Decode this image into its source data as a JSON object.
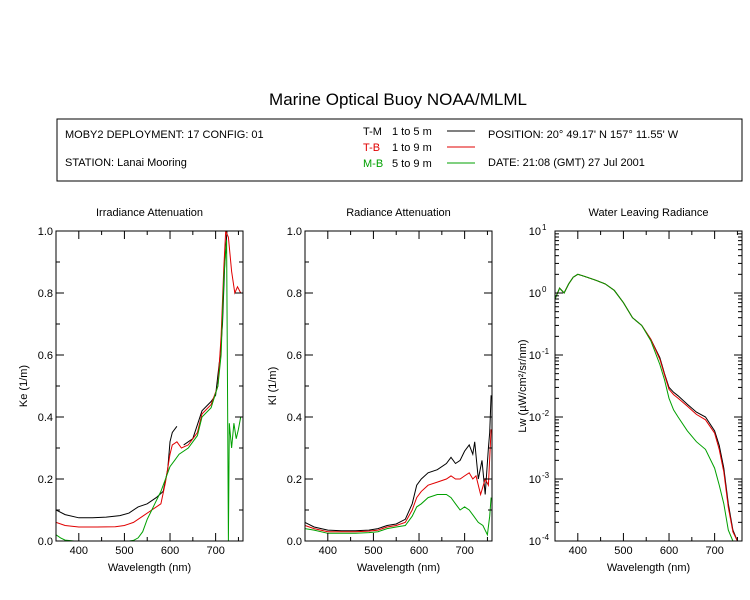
{
  "title": "Marine Optical Buoy NOAA/MLML",
  "info": {
    "deployment": "MOBY2 DEPLOYMENT: 17 CONFIG: 01",
    "station": "STATION: Lanai Mooring",
    "position": "POSITION: 20° 49.17' N   157° 11.55' W",
    "date": "DATE: 21:08 (GMT) 27 Jul 2001",
    "legend": [
      {
        "label": "T-M",
        "range": "1 to 5  m",
        "color": "#000000"
      },
      {
        "label": "T-B",
        "range": "1 to 9  m",
        "color": "#e00000"
      },
      {
        "label": "M-B",
        "range": "5 to 9  m",
        "color": "#00a000"
      }
    ]
  },
  "chart_data": [
    {
      "type": "line",
      "title": "Irradiance Attenuation",
      "xlabel": "Wavelength (nm)",
      "ylabel": "Ke  (1/m)",
      "xlim": [
        350,
        760
      ],
      "ylim": [
        0,
        1
      ],
      "yscale": "linear",
      "xticks": [
        400,
        500,
        600,
        700
      ],
      "yticks": [
        {
          "value": 0,
          "label": "0.0"
        },
        {
          "value": 0.2,
          "label": "0.2"
        },
        {
          "value": 0.4,
          "label": "0.4"
        },
        {
          "value": 0.6,
          "label": "0.6"
        },
        {
          "value": 0.8,
          "label": "0.8"
        },
        {
          "value": 1,
          "label": "1.0"
        }
      ],
      "series": [
        {
          "name": "T-M",
          "color": "#000000",
          "x": [
            350,
            370,
            400,
            430,
            460,
            490,
            510,
            530,
            550,
            570,
            585,
            595,
            600,
            605,
            615
          ],
          "y": [
            0.1,
            0.085,
            0.075,
            0.075,
            0.077,
            0.082,
            0.09,
            0.11,
            0.12,
            0.14,
            0.16,
            0.23,
            0.32,
            0.35,
            0.37
          ]
        },
        {
          "name": "T-M",
          "color": "#000000",
          "x": [
            630,
            650,
            670,
            690,
            700,
            710,
            715,
            720,
            725
          ],
          "y": [
            0.31,
            0.33,
            0.42,
            0.45,
            0.47,
            0.6,
            0.7,
            0.9,
            1.0
          ]
        },
        {
          "name": "T-B",
          "color": "#e00000",
          "x": [
            350,
            370,
            400,
            440,
            480,
            500,
            520,
            540,
            560,
            580,
            590,
            600,
            605,
            615,
            625,
            640,
            660,
            670,
            690,
            705,
            712,
            718,
            722,
            728,
            735,
            742,
            748,
            755
          ],
          "y": [
            0.06,
            0.05,
            0.045,
            0.045,
            0.046,
            0.05,
            0.06,
            0.08,
            0.1,
            0.12,
            0.19,
            0.28,
            0.31,
            0.32,
            0.3,
            0.31,
            0.35,
            0.41,
            0.44,
            0.5,
            0.66,
            0.88,
            1.0,
            0.98,
            0.87,
            0.8,
            0.82,
            0.8
          ]
        },
        {
          "name": "M-B",
          "color": "#00a000",
          "x": [
            350,
            360,
            370,
            390,
            410,
            430,
            460,
            490,
            510,
            520,
            530,
            540,
            550,
            560,
            570,
            580,
            590,
            600,
            610,
            620,
            640,
            660,
            670,
            690,
            705,
            712,
            718,
            724,
            726,
            728,
            730,
            735,
            740,
            745,
            750,
            755
          ],
          "y": [
            0.02,
            0.01,
            0.003,
            0.0,
            0.0,
            0.0,
            0.0,
            0.0,
            0.0,
            0.002,
            0.01,
            0.03,
            0.07,
            0.1,
            0.13,
            0.16,
            0.2,
            0.24,
            0.26,
            0.28,
            0.3,
            0.34,
            0.4,
            0.43,
            0.5,
            0.6,
            0.85,
            0.97,
            0.5,
            0.0,
            0.38,
            0.3,
            0.38,
            0.33,
            0.36,
            0.4
          ]
        }
      ]
    },
    {
      "type": "line",
      "title": "Radiance Attenuation",
      "xlabel": "Wavelength (nm)",
      "ylabel": "Kl  (1/m)",
      "xlim": [
        350,
        760
      ],
      "ylim": [
        0,
        1
      ],
      "yscale": "linear",
      "xticks": [
        400,
        500,
        600,
        700
      ],
      "yticks": [
        {
          "value": 0,
          "label": "0.0"
        },
        {
          "value": 0.2,
          "label": "0.2"
        },
        {
          "value": 0.4,
          "label": "0.4"
        },
        {
          "value": 0.6,
          "label": "0.6"
        },
        {
          "value": 0.8,
          "label": "0.8"
        },
        {
          "value": 1,
          "label": "1.0"
        }
      ],
      "series": [
        {
          "name": "T-M",
          "color": "#000000",
          "x": [
            350,
            370,
            400,
            430,
            460,
            490,
            510,
            530,
            550,
            570,
            585,
            595,
            605,
            620,
            640,
            660,
            670,
            680,
            690,
            700,
            710,
            718,
            722,
            730,
            738,
            745,
            752,
            755,
            758
          ],
          "y": [
            0.06,
            0.045,
            0.035,
            0.033,
            0.033,
            0.035,
            0.04,
            0.05,
            0.055,
            0.07,
            0.12,
            0.18,
            0.2,
            0.22,
            0.23,
            0.25,
            0.27,
            0.25,
            0.26,
            0.29,
            0.31,
            0.28,
            0.32,
            0.2,
            0.26,
            0.15,
            0.3,
            0.35,
            0.47
          ]
        },
        {
          "name": "T-B",
          "color": "#e00000",
          "x": [
            350,
            370,
            400,
            430,
            460,
            490,
            510,
            530,
            550,
            570,
            585,
            595,
            605,
            620,
            640,
            660,
            670,
            680,
            690,
            700,
            710,
            718,
            725,
            735,
            745,
            752,
            758
          ],
          "y": [
            0.05,
            0.04,
            0.03,
            0.03,
            0.03,
            0.032,
            0.035,
            0.045,
            0.05,
            0.06,
            0.1,
            0.14,
            0.16,
            0.18,
            0.19,
            0.2,
            0.21,
            0.2,
            0.2,
            0.21,
            0.22,
            0.2,
            0.21,
            0.15,
            0.2,
            0.18,
            0.36
          ]
        },
        {
          "name": "M-B",
          "color": "#00a000",
          "x": [
            350,
            370,
            400,
            430,
            460,
            490,
            510,
            530,
            550,
            570,
            585,
            595,
            605,
            620,
            640,
            660,
            670,
            680,
            690,
            700,
            710,
            720,
            730,
            740,
            750,
            755,
            758
          ],
          "y": [
            0.04,
            0.035,
            0.025,
            0.025,
            0.025,
            0.027,
            0.03,
            0.04,
            0.045,
            0.05,
            0.08,
            0.11,
            0.12,
            0.14,
            0.15,
            0.15,
            0.14,
            0.12,
            0.1,
            0.11,
            0.1,
            0.08,
            0.06,
            0.05,
            0.02,
            0.08,
            0.14
          ]
        }
      ]
    },
    {
      "type": "line",
      "title": "Water Leaving Radiance",
      "xlabel": "Wavelength (nm)",
      "ylabel": "Lw  (µW/cm²/sr/nm)",
      "xlim": [
        350,
        760
      ],
      "ylim": [
        0.0001,
        10
      ],
      "yscale": "log",
      "xticks": [
        400,
        500,
        600,
        700
      ],
      "yticks": [
        {
          "value": 10,
          "base": "10",
          "exp": "1"
        },
        {
          "value": 1,
          "base": "10",
          "exp": "0"
        },
        {
          "value": 0.1,
          "base": "10",
          "exp": "-1"
        },
        {
          "value": 0.01,
          "base": "10",
          "exp": "-2"
        },
        {
          "value": 0.001,
          "base": "10",
          "exp": "-3"
        },
        {
          "value": 0.0001,
          "base": "10",
          "exp": "-4"
        }
      ],
      "series": [
        {
          "name": "T-M",
          "color": "#000000",
          "x": [
            350,
            360,
            370,
            380,
            390,
            400,
            410,
            420,
            440,
            460,
            480,
            500,
            520,
            540,
            560,
            580,
            590,
            600,
            610,
            620,
            640,
            660,
            680,
            700,
            710,
            720,
            730,
            740,
            750
          ],
          "y": [
            0.8,
            1.2,
            1.0,
            1.4,
            1.8,
            2.0,
            1.9,
            1.8,
            1.6,
            1.4,
            1.1,
            0.7,
            0.4,
            0.3,
            0.18,
            0.09,
            0.05,
            0.03,
            0.025,
            0.022,
            0.016,
            0.012,
            0.01,
            0.006,
            0.0035,
            0.0015,
            0.0004,
            0.00015,
            0.0001
          ]
        },
        {
          "name": "T-B",
          "color": "#e00000",
          "x": [
            350,
            360,
            370,
            380,
            390,
            400,
            410,
            420,
            440,
            460,
            480,
            500,
            520,
            540,
            560,
            580,
            590,
            600,
            610,
            620,
            640,
            660,
            680,
            700,
            710,
            720,
            730,
            740,
            750
          ],
          "y": [
            0.8,
            1.2,
            1.0,
            1.4,
            1.8,
            2.0,
            1.9,
            1.8,
            1.6,
            1.4,
            1.1,
            0.7,
            0.4,
            0.3,
            0.18,
            0.085,
            0.048,
            0.028,
            0.023,
            0.02,
            0.015,
            0.011,
            0.009,
            0.0055,
            0.003,
            0.0013,
            0.00035,
            0.00014,
            0.0001
          ]
        },
        {
          "name": "M-B",
          "color": "#00a000",
          "x": [
            350,
            360,
            370,
            380,
            390,
            400,
            410,
            420,
            440,
            460,
            480,
            500,
            520,
            540,
            560,
            580,
            590,
            600,
            610,
            620,
            640,
            660,
            680,
            700,
            710,
            720,
            730,
            740,
            750
          ],
          "y": [
            0.8,
            1.2,
            1.0,
            1.4,
            1.8,
            2.0,
            1.9,
            1.8,
            1.6,
            1.4,
            1.1,
            0.7,
            0.4,
            0.3,
            0.17,
            0.07,
            0.04,
            0.02,
            0.013,
            0.01,
            0.006,
            0.004,
            0.003,
            0.0015,
            0.0008,
            0.0004,
            0.00015,
            0.0001,
            0.0001
          ]
        }
      ]
    }
  ]
}
